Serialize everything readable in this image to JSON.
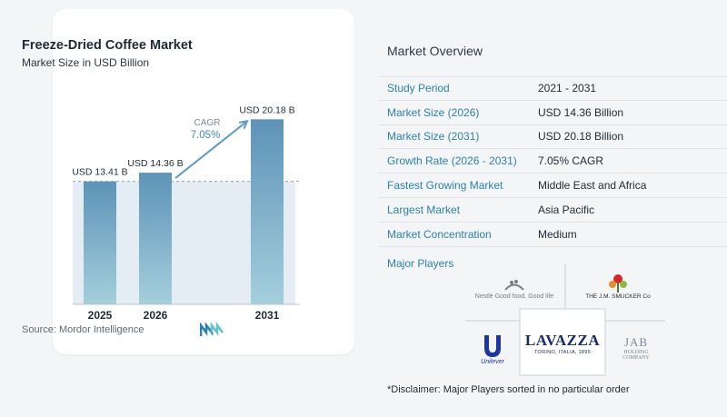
{
  "chart_data": {
    "type": "bar",
    "title": "Freeze-Dried Coffee Market",
    "subtitle": "Market Size in USD Billion",
    "categories": [
      "2025",
      "2026",
      "2031"
    ],
    "values": [
      13.41,
      14.36,
      20.18
    ],
    "data_labels": [
      "USD 13.41 B",
      "USD 14.36 B",
      "USD 20.18 B"
    ],
    "cagr_label": "CAGR",
    "cagr_value": "7.05%",
    "ylim": [
      0,
      21.5
    ],
    "colors": {
      "bar_top": "#5d93b8",
      "bar_bottom": "#a4cfdc",
      "band": "#e3edf3",
      "arrow": "#5b9bc4"
    }
  },
  "source": "Source:  Mordor Intelligence",
  "overview": {
    "title": "Market Overview",
    "rows": [
      {
        "label": "Study Period",
        "value": "2021 - 2031"
      },
      {
        "label": "Market Size (2026)",
        "value": "USD 14.36 Billion"
      },
      {
        "label": "Market Size (2031)",
        "value": "USD 20.18 Billion"
      },
      {
        "label": "Growth Rate (2026 - 2031)",
        "value": "7.05% CAGR"
      },
      {
        "label": "Fastest Growing Market",
        "value": "Middle East and Africa"
      },
      {
        "label": "Largest Market",
        "value": "Asia Pacific"
      },
      {
        "label": "Market Concentration",
        "value": "Medium"
      }
    ]
  },
  "players": {
    "label": "Major Players",
    "nestle": "Nestlé Good food, Good life",
    "smucker": "THE J.M. SMUCKER Co",
    "unilever": "Unilever",
    "lavazza": "LAVAZZA",
    "lavazza_sub": "TORINO, ITALIA, 1895",
    "jab_main": "JAB",
    "jab_sub1": "HOLDING",
    "jab_sub2": "COMPANY"
  },
  "disclaimer": "*Disclaimer: Major Players sorted in no particular order"
}
